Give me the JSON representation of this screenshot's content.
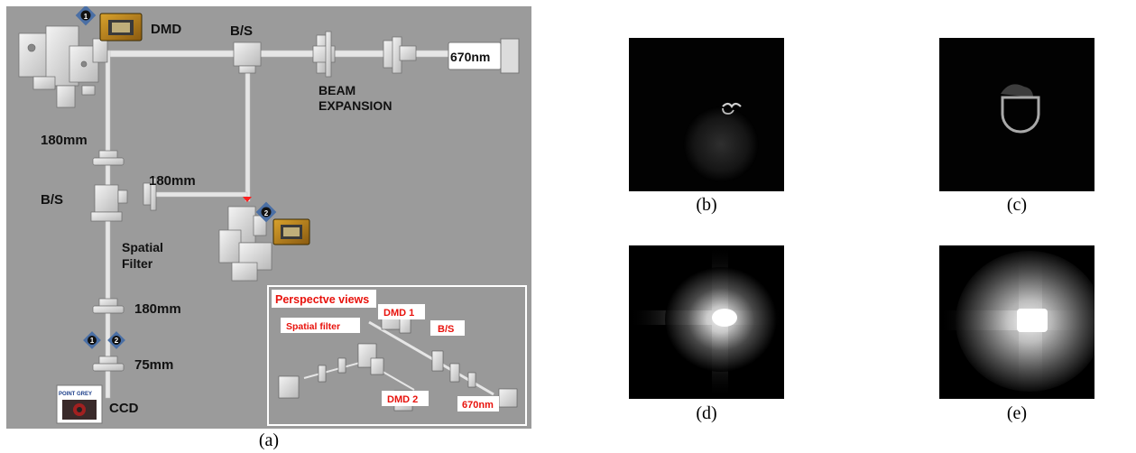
{
  "panel_a": {
    "caption": "(a)",
    "labels": {
      "dmd": "DMD",
      "bs_top": "B/S",
      "laser": "670nm",
      "beam_expansion_1": "BEAM",
      "beam_expansion_2": "EXPANSION",
      "lens_180_top": "180mm",
      "lens_180_mid": "180mm",
      "bs_left": "B/S",
      "spatial_filter_1": "Spatial",
      "spatial_filter_2": "Filter",
      "lens_180_bottom": "180mm",
      "lens_75": "75mm",
      "ccd": "CCD",
      "camera_brand": "POINT GREY",
      "badge_1": "1",
      "badge_2": "2",
      "badge_1b": "1",
      "badge_2b": "2"
    },
    "inset": {
      "title": "Perspectve views",
      "dmd1": "DMD 1",
      "spatial_filter": "Spatial filter",
      "bs": "B/S",
      "dmd2": "DMD 2",
      "laser": "670nm"
    },
    "colors": {
      "background": "#9b9b9b",
      "label_red": "#e8120c",
      "badge_blue": "#4a6fa5"
    }
  },
  "panels": [
    {
      "id": "b",
      "caption": "(b)"
    },
    {
      "id": "c",
      "caption": "(c)"
    },
    {
      "id": "d",
      "caption": "(d)"
    },
    {
      "id": "e",
      "caption": "(e)"
    }
  ]
}
